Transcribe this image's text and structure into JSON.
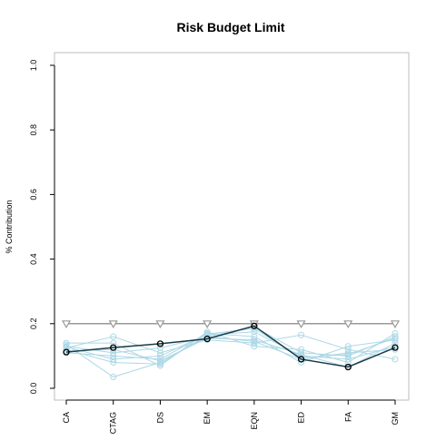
{
  "chart_data": {
    "type": "line",
    "title": "Risk Budget Limit",
    "xlabel": "",
    "ylabel": "% Contribution",
    "categories": [
      "CA",
      "CTAG",
      "DS",
      "EM",
      "EQN",
      "ED",
      "FA",
      "GM"
    ],
    "ylim": [
      0,
      1
    ],
    "yticks": [
      "0.0",
      "0.2",
      "0.4",
      "0.6",
      "0.8",
      "1.0"
    ],
    "grid": false,
    "colors": {
      "limit": "#999999",
      "highlight": "#000000",
      "highlight_line": "#1a3b49",
      "background_series": "#add8e6",
      "axis": "#000000",
      "box": "#bebebe"
    },
    "limit_series": {
      "values": [
        0.2,
        0.2,
        0.2,
        0.2,
        0.2,
        0.2,
        0.2,
        0.2
      ],
      "marker": "triangle-down"
    },
    "highlight_series": {
      "values": [
        0.112,
        0.126,
        0.138,
        0.153,
        0.193,
        0.09,
        0.066,
        0.126
      ],
      "marker": "circle"
    },
    "background_series": [
      {
        "values": [
          0.135,
          0.035,
          0.08,
          0.16,
          0.19,
          0.11,
          0.1,
          0.16
        ]
      },
      {
        "values": [
          0.12,
          0.08,
          0.075,
          0.165,
          0.175,
          0.1,
          0.09,
          0.13
        ]
      },
      {
        "values": [
          0.11,
          0.1,
          0.09,
          0.17,
          0.16,
          0.08,
          0.13,
          0.15
        ]
      },
      {
        "values": [
          0.125,
          0.16,
          0.11,
          0.15,
          0.14,
          0.165,
          0.12,
          0.09
        ]
      },
      {
        "values": [
          0.14,
          0.14,
          0.07,
          0.175,
          0.13,
          0.12,
          0.08,
          0.17
        ]
      },
      {
        "values": [
          0.13,
          0.11,
          0.125,
          0.16,
          0.145,
          0.09,
          0.11,
          0.12
        ]
      },
      {
        "values": [
          0.115,
          0.12,
          0.085,
          0.155,
          0.15,
          0.105,
          0.065,
          0.14
        ]
      },
      {
        "values": [
          0.128,
          0.09,
          0.1,
          0.168,
          0.185,
          0.095,
          0.105,
          0.155
        ]
      }
    ]
  }
}
